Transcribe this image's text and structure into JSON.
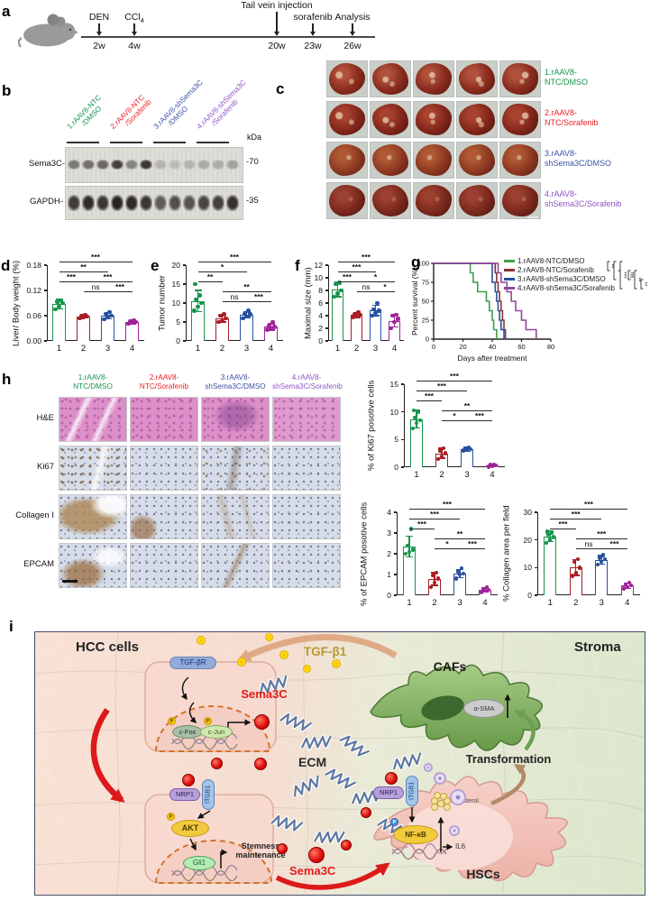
{
  "letters": {
    "a": "a",
    "b": "b",
    "c": "c",
    "d": "d",
    "e": "e",
    "f": "f",
    "g": "g",
    "h": "h",
    "i": "i"
  },
  "groups": [
    {
      "num": "1",
      "name": "1.rAAV8-NTC/DMSO",
      "line1": "1.rAAV8-",
      "line2": "NTC/DMSO",
      "blot_line1": "1.rAAV8-NTC",
      "blot_line2": "/DMSO",
      "label_color": "#17944c",
      "bar_color": "#17944c",
      "curve_color": "#3fa049"
    },
    {
      "num": "2",
      "name": "2.rAAV8-NTC/Sorafenib",
      "line1": "2.rAAV8-",
      "line2": "NTC/Sorafenib",
      "blot_line1": "2.rAAV8-NTC",
      "blot_line2": "/Sorafenib",
      "label_color": "#ec2024",
      "bar_color": "#a81e24",
      "curve_color": "#8b3033"
    },
    {
      "num": "3",
      "name": "3.rAAV8-shSema3C/DMSO",
      "line1": "3.rAAV8-",
      "line2": "shSema3C/DMSO",
      "blot_line1": "3.rAAV8-shSema3C",
      "blot_line2": "/DMSO",
      "label_color": "#3c53a4",
      "bar_color": "#27519f",
      "curve_color": "#27519f"
    },
    {
      "num": "4",
      "name": "4.rAAV8-shSema3C/Sorafenib",
      "line1": "4.rAAV8-",
      "line2": "shSema3C/Sorafenib",
      "blot_line1": "4.rAAV8-shSema3C",
      "blot_line2": "/Sorafenib",
      "label_color": "#8f55c5",
      "bar_color": "#a0239a",
      "curve_color": "#93479b"
    }
  ],
  "panel_a": {
    "events": [
      {
        "label": "DEN",
        "time": "2w"
      },
      {
        "label": "CCl",
        "sub": "4",
        "time": "4w"
      },
      {
        "label": "Tail vein injection",
        "time": "20w"
      },
      {
        "label": "sorafenib",
        "time": "23w"
      },
      {
        "label": "Analysis",
        "time": "26w"
      }
    ]
  },
  "panel_b": {
    "kda": "kDa",
    "blots": [
      {
        "label": "Sema3C-",
        "marker": "-70",
        "bands": [
          0.5,
          0.55,
          0.6,
          0.8,
          0.45,
          0.85,
          0.2,
          0.16,
          0.2,
          0.26,
          0.24,
          0.3
        ]
      },
      {
        "label": "GAPDH-",
        "marker": "-35",
        "bands": [
          0.82,
          0.9,
          0.85,
          0.95,
          0.92,
          0.85,
          0.65,
          0.72,
          0.7,
          0.78,
          0.8,
          0.88
        ]
      }
    ]
  },
  "panel_h": {
    "rows": [
      "H&E",
      "Ki67",
      "Collagen I",
      "EPCAM"
    ]
  },
  "chart_data": [
    {
      "id": "liver_body_weight",
      "type": "bar",
      "ylabel": "Liver/ Body weight (%)",
      "categories": [
        "1",
        "2",
        "3",
        "4"
      ],
      "values": [
        0.088,
        0.058,
        0.06,
        0.045
      ],
      "errors": [
        0.012,
        0.004,
        0.007,
        0.004
      ],
      "points": [
        [
          0.075,
          0.082,
          0.09,
          0.093,
          0.096
        ],
        [
          0.054,
          0.057,
          0.058,
          0.059,
          0.061
        ],
        [
          0.052,
          0.057,
          0.06,
          0.064,
          0.068
        ],
        [
          0.041,
          0.044,
          0.045,
          0.046,
          0.048
        ]
      ],
      "ylim": [
        0,
        0.18
      ],
      "yticks": [
        "0.00",
        "0.06",
        "0.12",
        "0.18"
      ],
      "sig": [
        {
          "a": 1,
          "b": 4,
          "label": "***",
          "row": 0
        },
        {
          "a": 1,
          "b": 3,
          "label": "**",
          "row": 1
        },
        {
          "a": 1,
          "b": 2,
          "label": "***",
          "row": 2
        },
        {
          "a": 2,
          "b": 4,
          "label": "***",
          "row": 2
        },
        {
          "a": 2,
          "b": 3,
          "label": "ns",
          "row": 3
        },
        {
          "a": 3,
          "b": 4,
          "label": "***",
          "row": 3
        }
      ]
    },
    {
      "id": "tumor_number",
      "type": "bar",
      "ylabel": "Tumor number",
      "categories": [
        "1",
        "2",
        "3",
        "4"
      ],
      "values": [
        10.5,
        6,
        7,
        3.7
      ],
      "errors": [
        2.8,
        1,
        0.8,
        0.8
      ],
      "points": [
        [
          8,
          9,
          10,
          11,
          12,
          15
        ],
        [
          5,
          5.2,
          6,
          6.6,
          7
        ],
        [
          6,
          6.5,
          7,
          7.2,
          8
        ],
        [
          3,
          3.4,
          3.7,
          4,
          5
        ]
      ],
      "ylim": [
        0,
        20
      ],
      "yticks": [
        "0",
        "5",
        "10",
        "15",
        "20"
      ],
      "sig": [
        {
          "a": 1,
          "b": 4,
          "label": "***",
          "row": 0
        },
        {
          "a": 1,
          "b": 3,
          "label": "*",
          "row": 1
        },
        {
          "a": 1,
          "b": 2,
          "label": "**",
          "row": 2
        },
        {
          "a": 2,
          "b": 4,
          "label": "**",
          "row": 3
        },
        {
          "a": 2,
          "b": 3,
          "label": "ns",
          "row": 4
        },
        {
          "a": 3,
          "b": 4,
          "label": "***",
          "row": 4
        }
      ]
    },
    {
      "id": "maximal_size",
      "type": "bar",
      "ylabel": "Maximal size (mm)",
      "categories": [
        "1",
        "2",
        "3",
        "4"
      ],
      "values": [
        8.2,
        4.1,
        4.8,
        3.2
      ],
      "errors": [
        1.2,
        0.4,
        0.8,
        1
      ],
      "points": [
        [
          7,
          7.5,
          8,
          9,
          9.2
        ],
        [
          3.8,
          4,
          4.1,
          4.2,
          4.6
        ],
        [
          4,
          4.4,
          4.8,
          5,
          6
        ],
        [
          2,
          3,
          3.5,
          4,
          4.1
        ]
      ],
      "ylim": [
        0,
        12
      ],
      "yticks": [
        "0",
        "2",
        "4",
        "6",
        "8",
        "10",
        "12"
      ],
      "sig": [
        {
          "a": 1,
          "b": 4,
          "label": "***",
          "row": 0
        },
        {
          "a": 1,
          "b": 3,
          "label": "***",
          "row": 1
        },
        {
          "a": 1,
          "b": 2,
          "label": "***",
          "row": 2
        },
        {
          "a": 2,
          "b": 4,
          "label": "*",
          "row": 2
        },
        {
          "a": 2,
          "b": 3,
          "label": "ns",
          "row": 3
        },
        {
          "a": 3,
          "b": 4,
          "label": "*",
          "row": 3
        }
      ]
    },
    {
      "id": "ki67",
      "type": "bar",
      "ylabel": "% of Ki67 posotive cells",
      "categories": [
        "1",
        "2",
        "3",
        "4"
      ],
      "values": [
        8.7,
        2.5,
        3.3,
        0.3
      ],
      "errors": [
        1.6,
        0.9,
        0.4,
        0.2
      ],
      "points": [
        [
          7,
          8,
          8.5,
          9,
          10,
          10.3
        ],
        [
          1.5,
          2,
          2.5,
          3,
          3.4
        ],
        [
          3,
          3.1,
          3.3,
          3.4,
          3.6
        ],
        [
          0.1,
          0.2,
          0.3,
          0.4,
          0.5
        ]
      ],
      "ylim": [
        0,
        15
      ],
      "yticks": [
        "0",
        "5",
        "10",
        "15"
      ],
      "sig": [
        {
          "a": 1,
          "b": 4,
          "label": "***",
          "row": 0
        },
        {
          "a": 1,
          "b": 3,
          "label": "***",
          "row": 1
        },
        {
          "a": 1,
          "b": 2,
          "label": "***",
          "row": 2
        },
        {
          "a": 2,
          "b": 4,
          "label": "**",
          "row": 3
        },
        {
          "a": 2,
          "b": 3,
          "label": "*",
          "row": 4
        },
        {
          "a": 3,
          "b": 4,
          "label": "***",
          "row": 4
        }
      ]
    },
    {
      "id": "epcam",
      "type": "bar",
      "ylabel": "% of EPCAM posotive cells",
      "categories": [
        "1",
        "2",
        "3",
        "4"
      ],
      "values": [
        2.35,
        0.78,
        1.05,
        0.27
      ],
      "errors": [
        0.5,
        0.3,
        0.2,
        0.1
      ],
      "points": [
        [
          2,
          2.1,
          2.2,
          2.4,
          3.2
        ],
        [
          0.4,
          0.6,
          0.8,
          0.95,
          1.1
        ],
        [
          0.8,
          1,
          1.05,
          1.15,
          1.3
        ],
        [
          0.15,
          0.22,
          0.27,
          0.3,
          0.38
        ]
      ],
      "ylim": [
        0,
        4
      ],
      "yticks": [
        "0",
        "1",
        "2",
        "3",
        "4"
      ],
      "sig": [
        {
          "a": 1,
          "b": 4,
          "label": "***",
          "row": 0
        },
        {
          "a": 1,
          "b": 3,
          "label": "***",
          "row": 1
        },
        {
          "a": 1,
          "b": 2,
          "label": "***",
          "row": 2
        },
        {
          "a": 2,
          "b": 4,
          "label": "**",
          "row": 3
        },
        {
          "a": 2,
          "b": 3,
          "label": "*",
          "row": 4
        },
        {
          "a": 3,
          "b": 4,
          "label": "***",
          "row": 4
        }
      ]
    },
    {
      "id": "collagen",
      "type": "bar",
      "ylabel": "% Collagen area per field",
      "categories": [
        "1",
        "2",
        "3",
        "4"
      ],
      "values": [
        21.3,
        10,
        12.8,
        3.5
      ],
      "errors": [
        1.8,
        2.8,
        1.5,
        1
      ],
      "points": [
        [
          19,
          20,
          21,
          22,
          22.5,
          23
        ],
        [
          7,
          8,
          10,
          12,
          13
        ],
        [
          11,
          12,
          13,
          13.5,
          14.5
        ],
        [
          2.5,
          3,
          3.5,
          4,
          4.5
        ]
      ],
      "ylim": [
        0,
        30
      ],
      "yticks": [
        "0",
        "10",
        "20",
        "30"
      ],
      "sig": [
        {
          "a": 1,
          "b": 4,
          "label": "***",
          "row": 0
        },
        {
          "a": 1,
          "b": 3,
          "label": "***",
          "row": 1
        },
        {
          "a": 1,
          "b": 2,
          "label": "***",
          "row": 2
        },
        {
          "a": 2,
          "b": 4,
          "label": "***",
          "row": 3
        },
        {
          "a": 2,
          "b": 3,
          "label": "ns",
          "row": 4
        },
        {
          "a": 3,
          "b": 4,
          "label": "***",
          "row": 4
        }
      ]
    },
    {
      "id": "survival",
      "type": "line",
      "xlabel": "Days after treatment",
      "ylabel": "Percent survival (%)",
      "xticks": [
        0,
        20,
        40,
        60,
        80
      ],
      "yticks": [
        0,
        25,
        50,
        75,
        100
      ],
      "xlim": [
        0,
        80
      ],
      "ylim": [
        0,
        100
      ],
      "series": [
        {
          "name": "1.rAAV8-NTC/DMSO",
          "points": [
            [
              0,
              100
            ],
            [
              25,
              100
            ],
            [
              25,
              87.5
            ],
            [
              27,
              87.5
            ],
            [
              27,
              75
            ],
            [
              30,
              75
            ],
            [
              30,
              62.5
            ],
            [
              36,
              62.5
            ],
            [
              36,
              50
            ],
            [
              38,
              50
            ],
            [
              38,
              37.5
            ],
            [
              40,
              37.5
            ],
            [
              40,
              25
            ],
            [
              41,
              25
            ],
            [
              41,
              12.5
            ],
            [
              43,
              12.5
            ],
            [
              43,
              0
            ]
          ]
        },
        {
          "name": "2.rAAV8-NTC/Sorafenib",
          "points": [
            [
              0,
              100
            ],
            [
              42,
              100
            ],
            [
              42,
              87.5
            ],
            [
              43,
              87.5
            ],
            [
              43,
              75
            ],
            [
              44,
              75
            ],
            [
              44,
              62.5
            ],
            [
              45,
              62.5
            ],
            [
              45,
              50
            ],
            [
              46,
              50
            ],
            [
              46,
              37.5
            ],
            [
              47,
              37.5
            ],
            [
              47,
              25
            ],
            [
              48,
              25
            ],
            [
              48,
              12.5
            ],
            [
              49,
              12.5
            ],
            [
              49,
              0
            ]
          ]
        },
        {
          "name": "3.rAAV8-shSema3C/DMSO",
          "points": [
            [
              0,
              100
            ],
            [
              40,
              100
            ],
            [
              40,
              75
            ],
            [
              42,
              75
            ],
            [
              42,
              62.5
            ],
            [
              43,
              62.5
            ],
            [
              43,
              50
            ],
            [
              44,
              50
            ],
            [
              44,
              37.5
            ],
            [
              45,
              37.5
            ],
            [
              45,
              25
            ],
            [
              46,
              25
            ],
            [
              46,
              12.5
            ],
            [
              48,
              12.5
            ],
            [
              48,
              0
            ]
          ]
        },
        {
          "name": "4.rAAV8-shSema3C/Sorafenib",
          "points": [
            [
              0,
              100
            ],
            [
              44,
              100
            ],
            [
              44,
              87.5
            ],
            [
              46,
              87.5
            ],
            [
              46,
              75
            ],
            [
              50,
              75
            ],
            [
              50,
              62.5
            ],
            [
              53,
              62.5
            ],
            [
              53,
              50
            ],
            [
              56,
              50
            ],
            [
              56,
              37.5
            ],
            [
              60,
              37.5
            ],
            [
              60,
              25
            ],
            [
              63,
              25
            ],
            [
              63,
              12.5
            ],
            [
              70,
              12.5
            ],
            [
              70,
              0
            ]
          ]
        }
      ],
      "sig": [
        {
          "pair": "1 vs 2",
          "label": "**"
        },
        {
          "pair": "1 vs 3",
          "label": "*"
        },
        {
          "pair": "1 vs 4",
          "label": "***"
        },
        {
          "pair": "2 vs 3",
          "label": "ns"
        },
        {
          "pair": "2 vs 4",
          "label": "**"
        },
        {
          "pair": "3 vs 4",
          "label": "**"
        }
      ]
    }
  ],
  "panel_i": {
    "hcc_cells": "HCC cells",
    "stroma": "Stroma",
    "tgfb1": "TGF-β1",
    "tgfbr": "TGF-βR",
    "sema3c_top": "Sema3C",
    "cfos": "c-Fos",
    "cjun": "c-Jun",
    "cafs": "CAFs",
    "asma": "α-SMA",
    "transformation": "Transformation",
    "ecm": "ECM",
    "nrp1_hcc": "NRP1",
    "itgb1_hcc": "ITGB1",
    "akt": "AKT",
    "gli1": "Gli1",
    "stemness_line1": "Stemness",
    "stemness_line2": "maintenance",
    "nrp1_hsc": "NRP1",
    "itgb1_hsc": "ITGB1",
    "nfkb": "NF-κB",
    "cholesterol": "cholesterol",
    "il6": "IL6",
    "hscs": "HSCs",
    "sema3c_bottom": "Sema3C",
    "p_label": "P"
  }
}
